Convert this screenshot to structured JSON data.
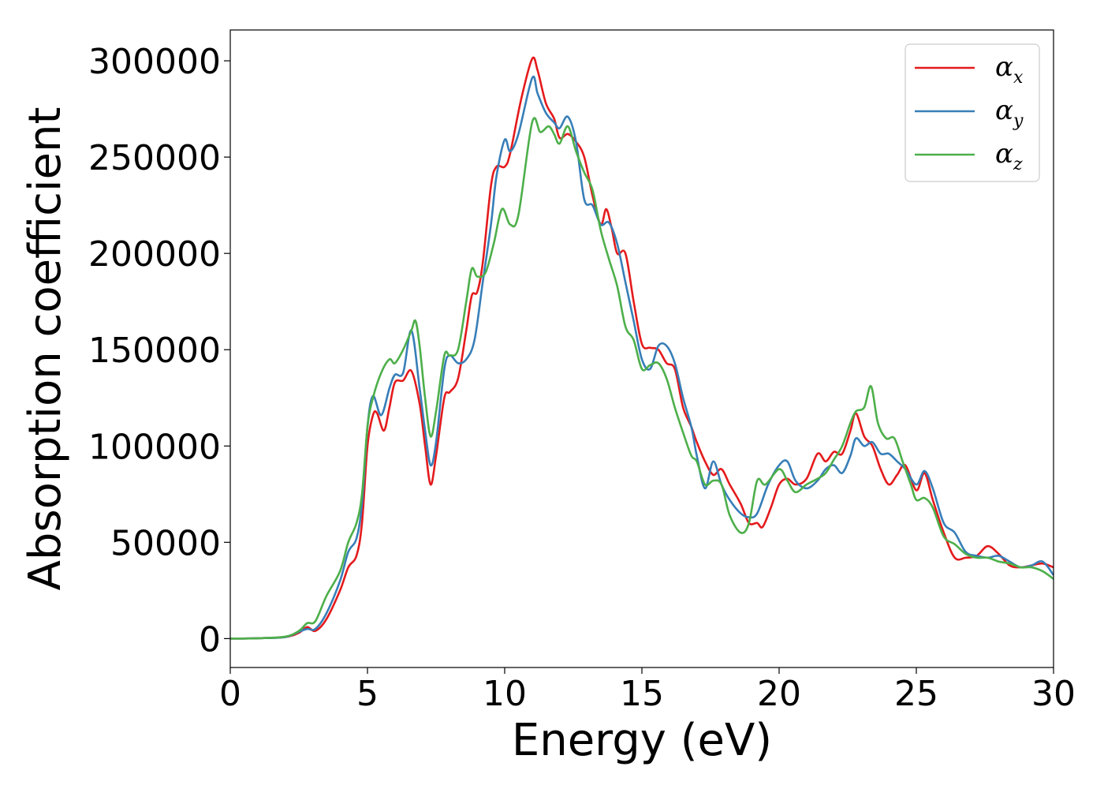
{
  "chart_data": {
    "type": "line",
    "title": "",
    "xlabel": "Energy (eV)",
    "ylabel": "Absorption coefficient",
    "xlim": [
      0,
      30
    ],
    "ylim": [
      -15000,
      316000
    ],
    "xticks": [
      0,
      5,
      10,
      15,
      20,
      25,
      30
    ],
    "yticks": [
      0,
      50000,
      100000,
      150000,
      200000,
      250000,
      300000
    ],
    "grid": false,
    "legend_position": "top-right",
    "series": [
      {
        "name": "α",
        "subscript": "x",
        "color": "#e41a1c",
        "points": [
          [
            0,
            0
          ],
          [
            1,
            200
          ],
          [
            2,
            800
          ],
          [
            2.5,
            3000
          ],
          [
            2.8,
            6000
          ],
          [
            3.1,
            4000
          ],
          [
            3.5,
            10000
          ],
          [
            4,
            25000
          ],
          [
            4.3,
            37000
          ],
          [
            4.6,
            43000
          ],
          [
            4.8,
            60000
          ],
          [
            5,
            100000
          ],
          [
            5.2,
            116000
          ],
          [
            5.35,
            117000
          ],
          [
            5.6,
            108000
          ],
          [
            5.8,
            120000
          ],
          [
            6,
            133000
          ],
          [
            6.3,
            134000
          ],
          [
            6.6,
            139000
          ],
          [
            6.9,
            122000
          ],
          [
            7.1,
            100000
          ],
          [
            7.3,
            80000
          ],
          [
            7.5,
            95000
          ],
          [
            7.8,
            125000
          ],
          [
            8,
            128000
          ],
          [
            8.3,
            135000
          ],
          [
            8.6,
            160000
          ],
          [
            8.8,
            178000
          ],
          [
            9,
            180000
          ],
          [
            9.2,
            195000
          ],
          [
            9.5,
            235000
          ],
          [
            9.7,
            245000
          ],
          [
            10,
            245000
          ],
          [
            10.2,
            252000
          ],
          [
            10.6,
            280000
          ],
          [
            11,
            301000
          ],
          [
            11.2,
            295000
          ],
          [
            11.5,
            278000
          ],
          [
            11.8,
            270000
          ],
          [
            12,
            260000
          ],
          [
            12.3,
            262000
          ],
          [
            12.6,
            258000
          ],
          [
            12.9,
            250000
          ],
          [
            13.2,
            230000
          ],
          [
            13.5,
            215000
          ],
          [
            13.7,
            223000
          ],
          [
            13.9,
            213000
          ],
          [
            14.1,
            200000
          ],
          [
            14.4,
            200000
          ],
          [
            14.7,
            175000
          ],
          [
            15,
            153000
          ],
          [
            15.3,
            151000
          ],
          [
            15.6,
            150000
          ],
          [
            15.9,
            143000
          ],
          [
            16.2,
            140000
          ],
          [
            16.5,
            120000
          ],
          [
            16.8,
            110000
          ],
          [
            17,
            102000
          ],
          [
            17.3,
            92000
          ],
          [
            17.6,
            85000
          ],
          [
            17.9,
            88000
          ],
          [
            18.2,
            80000
          ],
          [
            18.6,
            70000
          ],
          [
            18.9,
            60000
          ],
          [
            19.2,
            60000
          ],
          [
            19.4,
            58000
          ],
          [
            19.7,
            68000
          ],
          [
            20,
            80000
          ],
          [
            20.3,
            83000
          ],
          [
            20.6,
            80000
          ],
          [
            21,
            83000
          ],
          [
            21.4,
            96000
          ],
          [
            21.7,
            92000
          ],
          [
            22,
            97000
          ],
          [
            22.3,
            96000
          ],
          [
            22.6,
            108000
          ],
          [
            22.8,
            117000
          ],
          [
            23.1,
            105000
          ],
          [
            23.4,
            100000
          ],
          [
            23.7,
            88000
          ],
          [
            24,
            80000
          ],
          [
            24.3,
            85000
          ],
          [
            24.6,
            90000
          ],
          [
            25,
            77000
          ],
          [
            25.3,
            86000
          ],
          [
            25.6,
            72000
          ],
          [
            26,
            55000
          ],
          [
            26.4,
            42000
          ],
          [
            26.8,
            42000
          ],
          [
            27.2,
            43000
          ],
          [
            27.6,
            48000
          ],
          [
            28,
            44000
          ],
          [
            28.4,
            38000
          ],
          [
            28.8,
            37000
          ],
          [
            29.2,
            38000
          ],
          [
            29.6,
            39000
          ],
          [
            30,
            37000
          ]
        ]
      },
      {
        "name": "α",
        "subscript": "y",
        "color": "#377eb8",
        "points": [
          [
            0,
            0
          ],
          [
            1,
            200
          ],
          [
            2,
            800
          ],
          [
            2.5,
            3500
          ],
          [
            2.8,
            5000
          ],
          [
            3.1,
            5000
          ],
          [
            3.5,
            13000
          ],
          [
            4,
            30000
          ],
          [
            4.3,
            45000
          ],
          [
            4.6,
            52000
          ],
          [
            4.8,
            70000
          ],
          [
            5,
            110000
          ],
          [
            5.2,
            126000
          ],
          [
            5.5,
            116000
          ],
          [
            5.8,
            130000
          ],
          [
            6,
            137000
          ],
          [
            6.3,
            138000
          ],
          [
            6.6,
            160000
          ],
          [
            6.9,
            130000
          ],
          [
            7.1,
            108000
          ],
          [
            7.3,
            90000
          ],
          [
            7.5,
            102000
          ],
          [
            7.8,
            140000
          ],
          [
            8,
            147000
          ],
          [
            8.3,
            143000
          ],
          [
            8.6,
            145000
          ],
          [
            8.9,
            155000
          ],
          [
            9.2,
            185000
          ],
          [
            9.5,
            215000
          ],
          [
            9.7,
            240000
          ],
          [
            10,
            259000
          ],
          [
            10.2,
            253000
          ],
          [
            10.5,
            262000
          ],
          [
            11,
            291000
          ],
          [
            11.2,
            283000
          ],
          [
            11.5,
            273000
          ],
          [
            11.8,
            268000
          ],
          [
            12,
            265000
          ],
          [
            12.3,
            271000
          ],
          [
            12.6,
            258000
          ],
          [
            12.9,
            228000
          ],
          [
            13.2,
            225000
          ],
          [
            13.5,
            215000
          ],
          [
            13.8,
            216000
          ],
          [
            14.1,
            205000
          ],
          [
            14.4,
            185000
          ],
          [
            14.7,
            165000
          ],
          [
            15,
            145000
          ],
          [
            15.3,
            140000
          ],
          [
            15.6,
            152000
          ],
          [
            15.9,
            152000
          ],
          [
            16.2,
            143000
          ],
          [
            16.5,
            125000
          ],
          [
            16.8,
            110000
          ],
          [
            17,
            95000
          ],
          [
            17.3,
            78000
          ],
          [
            17.6,
            92000
          ],
          [
            17.9,
            80000
          ],
          [
            18.2,
            72000
          ],
          [
            18.6,
            65000
          ],
          [
            18.9,
            63000
          ],
          [
            19.2,
            65000
          ],
          [
            19.6,
            80000
          ],
          [
            20,
            90000
          ],
          [
            20.3,
            92000
          ],
          [
            20.6,
            82000
          ],
          [
            21,
            78000
          ],
          [
            21.4,
            82000
          ],
          [
            21.7,
            88000
          ],
          [
            22,
            90000
          ],
          [
            22.3,
            86000
          ],
          [
            22.6,
            95000
          ],
          [
            22.8,
            104000
          ],
          [
            23.1,
            100000
          ],
          [
            23.4,
            102000
          ],
          [
            23.7,
            96000
          ],
          [
            24,
            96000
          ],
          [
            24.3,
            92000
          ],
          [
            24.6,
            88000
          ],
          [
            25,
            80000
          ],
          [
            25.3,
            87000
          ],
          [
            25.6,
            78000
          ],
          [
            26,
            60000
          ],
          [
            26.4,
            55000
          ],
          [
            26.8,
            45000
          ],
          [
            27.2,
            43000
          ],
          [
            27.6,
            42000
          ],
          [
            28,
            43000
          ],
          [
            28.4,
            40000
          ],
          [
            28.8,
            37000
          ],
          [
            29.2,
            38000
          ],
          [
            29.6,
            40000
          ],
          [
            30,
            33000
          ]
        ]
      },
      {
        "name": "α",
        "subscript": "z",
        "color": "#4daf4a",
        "points": [
          [
            0,
            0
          ],
          [
            1,
            200
          ],
          [
            2,
            1000
          ],
          [
            2.5,
            4000
          ],
          [
            2.8,
            8000
          ],
          [
            3.1,
            9000
          ],
          [
            3.5,
            22000
          ],
          [
            4,
            35000
          ],
          [
            4.3,
            50000
          ],
          [
            4.6,
            60000
          ],
          [
            4.8,
            75000
          ],
          [
            5,
            110000
          ],
          [
            5.2,
            125000
          ],
          [
            5.5,
            138000
          ],
          [
            5.8,
            145000
          ],
          [
            6,
            143000
          ],
          [
            6.3,
            150000
          ],
          [
            6.6,
            160000
          ],
          [
            6.75,
            165000
          ],
          [
            6.9,
            152000
          ],
          [
            7.1,
            125000
          ],
          [
            7.3,
            105000
          ],
          [
            7.5,
            118000
          ],
          [
            7.8,
            147000
          ],
          [
            8,
            147000
          ],
          [
            8.3,
            150000
          ],
          [
            8.6,
            175000
          ],
          [
            8.8,
            192000
          ],
          [
            9,
            188000
          ],
          [
            9.3,
            190000
          ],
          [
            9.6,
            205000
          ],
          [
            9.9,
            223000
          ],
          [
            10.2,
            215000
          ],
          [
            10.5,
            220000
          ],
          [
            11,
            268000
          ],
          [
            11.3,
            263000
          ],
          [
            11.6,
            266000
          ],
          [
            11.8,
            262000
          ],
          [
            12,
            257000
          ],
          [
            12.3,
            266000
          ],
          [
            12.6,
            253000
          ],
          [
            12.9,
            242000
          ],
          [
            13.2,
            233000
          ],
          [
            13.5,
            212000
          ],
          [
            13.8,
            197000
          ],
          [
            14.1,
            183000
          ],
          [
            14.4,
            162000
          ],
          [
            14.7,
            155000
          ],
          [
            15,
            140000
          ],
          [
            15.3,
            142000
          ],
          [
            15.6,
            143000
          ],
          [
            15.9,
            135000
          ],
          [
            16.2,
            120000
          ],
          [
            16.5,
            107000
          ],
          [
            16.8,
            95000
          ],
          [
            17,
            92000
          ],
          [
            17.3,
            80000
          ],
          [
            17.6,
            82000
          ],
          [
            17.9,
            80000
          ],
          [
            18.2,
            64000
          ],
          [
            18.6,
            55000
          ],
          [
            18.9,
            60000
          ],
          [
            19.2,
            82000
          ],
          [
            19.5,
            80000
          ],
          [
            20,
            88000
          ],
          [
            20.3,
            82000
          ],
          [
            20.6,
            76000
          ],
          [
            21,
            80000
          ],
          [
            21.4,
            83000
          ],
          [
            21.7,
            86000
          ],
          [
            22,
            93000
          ],
          [
            22.3,
            100000
          ],
          [
            22.6,
            112000
          ],
          [
            22.8,
            118000
          ],
          [
            23.1,
            120000
          ],
          [
            23.35,
            131000
          ],
          [
            23.6,
            112000
          ],
          [
            23.9,
            104000
          ],
          [
            24.2,
            104000
          ],
          [
            24.5,
            92000
          ],
          [
            24.8,
            80000
          ],
          [
            25,
            72000
          ],
          [
            25.3,
            73000
          ],
          [
            25.6,
            68000
          ],
          [
            26,
            53000
          ],
          [
            26.4,
            49000
          ],
          [
            26.8,
            44000
          ],
          [
            27.2,
            42000
          ],
          [
            27.6,
            42000
          ],
          [
            28,
            40000
          ],
          [
            28.4,
            39000
          ],
          [
            28.8,
            37000
          ],
          [
            29.2,
            37000
          ],
          [
            29.6,
            35000
          ],
          [
            30,
            31000
          ]
        ]
      }
    ]
  }
}
